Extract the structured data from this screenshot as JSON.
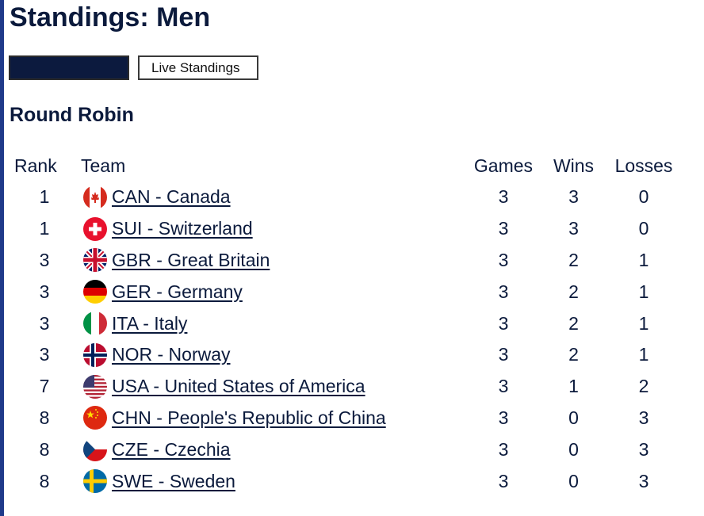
{
  "page": {
    "title": "Standings: Men",
    "accent_color": "#1f3a8a",
    "text_color": "#0b1a3c"
  },
  "tabs": [
    {
      "label": "",
      "active": true
    },
    {
      "label": "Live Standings",
      "active": false
    }
  ],
  "section": {
    "title": "Round Robin"
  },
  "table": {
    "headers": {
      "rank": "Rank",
      "team": "Team",
      "games": "Games",
      "wins": "Wins",
      "losses": "Losses"
    },
    "rows": [
      {
        "rank": "1",
        "team": "CAN - Canada",
        "flag": "flag-canada-icon",
        "games": "3",
        "wins": "3",
        "losses": "0"
      },
      {
        "rank": "1",
        "team": "SUI - Switzerland",
        "flag": "flag-switzerland-icon",
        "games": "3",
        "wins": "3",
        "losses": "0"
      },
      {
        "rank": "3",
        "team": "GBR - Great Britain",
        "flag": "flag-great-britain-icon",
        "games": "3",
        "wins": "2",
        "losses": "1"
      },
      {
        "rank": "3",
        "team": "GER - Germany",
        "flag": "flag-germany-icon",
        "games": "3",
        "wins": "2",
        "losses": "1"
      },
      {
        "rank": "3",
        "team": "ITA - Italy",
        "flag": "flag-italy-icon",
        "games": "3",
        "wins": "2",
        "losses": "1"
      },
      {
        "rank": "3",
        "team": "NOR - Norway",
        "flag": "flag-norway-icon",
        "games": "3",
        "wins": "2",
        "losses": "1"
      },
      {
        "rank": "7",
        "team": "USA - United States of America",
        "flag": "flag-usa-icon",
        "games": "3",
        "wins": "1",
        "losses": "2"
      },
      {
        "rank": "8",
        "team": "CHN - People's Republic of China",
        "flag": "flag-china-icon",
        "games": "3",
        "wins": "0",
        "losses": "3"
      },
      {
        "rank": "8",
        "team": "CZE - Czechia",
        "flag": "flag-czechia-icon",
        "games": "3",
        "wins": "0",
        "losses": "3"
      },
      {
        "rank": "8",
        "team": "SWE - Sweden",
        "flag": "flag-sweden-icon",
        "games": "3",
        "wins": "0",
        "losses": "3"
      }
    ]
  }
}
